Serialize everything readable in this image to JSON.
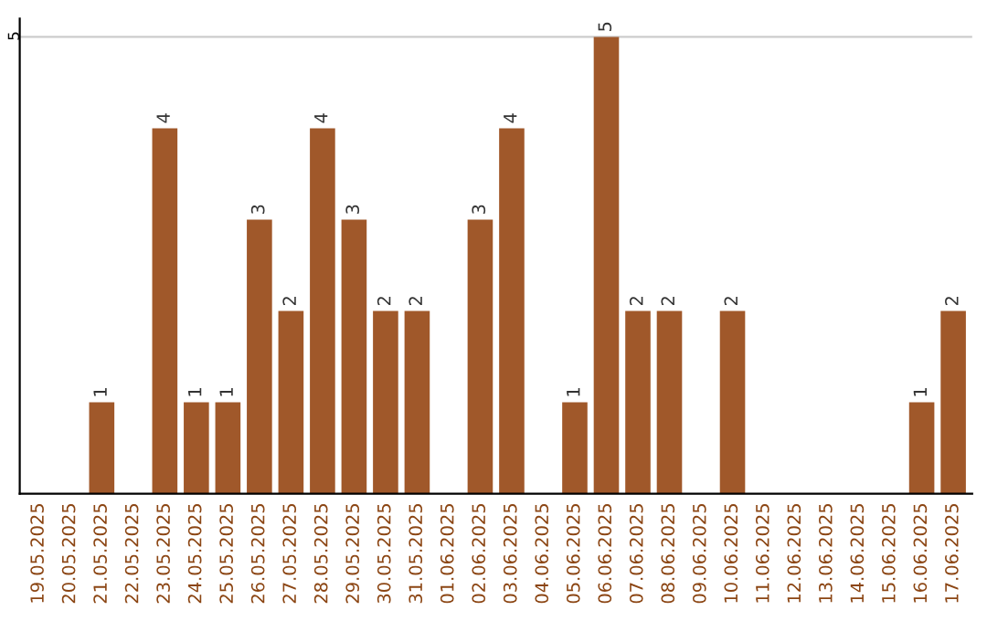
{
  "chart_data": {
    "type": "bar",
    "categories": [
      "19.05.2025",
      "20.05.2025",
      "21.05.2025",
      "22.05.2025",
      "23.05.2025",
      "24.05.2025",
      "25.05.2025",
      "26.05.2025",
      "27.05.2025",
      "28.05.2025",
      "29.05.2025",
      "30.05.2025",
      "31.05.2025",
      "01.06.2025",
      "02.06.2025",
      "03.06.2025",
      "04.06.2025",
      "05.06.2025",
      "06.06.2025",
      "07.06.2025",
      "08.06.2025",
      "09.06.2025",
      "10.06.2025",
      "11.06.2025",
      "12.06.2025",
      "13.06.2025",
      "14.06.2025",
      "15.06.2025",
      "16.06.2025",
      "17.06.2025"
    ],
    "values": [
      0,
      0,
      1,
      0,
      4,
      1,
      1,
      3,
      2,
      4,
      3,
      2,
      2,
      0,
      3,
      4,
      0,
      1,
      5,
      2,
      2,
      0,
      2,
      0,
      0,
      0,
      0,
      0,
      1,
      2
    ],
    "value_labels": [
      null,
      null,
      "1",
      null,
      "4",
      "1",
      "1",
      "3",
      "2",
      "4",
      "3",
      "2",
      "2",
      null,
      "3",
      "4",
      null,
      "1",
      "5",
      "2",
      "2",
      null,
      "2",
      null,
      null,
      null,
      null,
      null,
      "1",
      "2"
    ],
    "color": "#a0582a",
    "ylim": [
      0,
      5.2
    ],
    "yticks": [
      5
    ],
    "grid": "y"
  }
}
